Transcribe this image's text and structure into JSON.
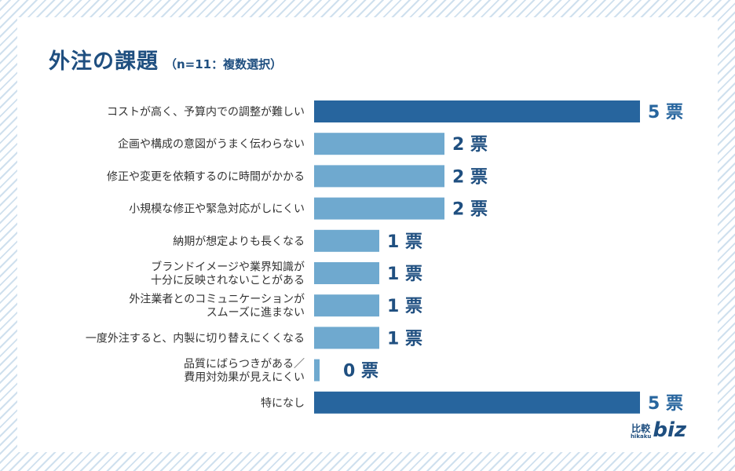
{
  "title": "外注の課題",
  "subtitle": "（n=11：複数選択）",
  "logo": {
    "kanji": "比較",
    "roman": "hikaku",
    "biz": "biz"
  },
  "colors": {
    "highlight": "#27659e",
    "normal": "#6fa9cf",
    "text": "#333333",
    "title": "#1f4f80"
  },
  "chart_data": {
    "type": "bar",
    "orientation": "horizontal",
    "title": "外注の課題",
    "subtitle": "（n=11：複数選択）",
    "unit": "票",
    "categories": [
      [
        "コストが高く、予算内での調整が難しい"
      ],
      [
        "企画や構成の意図がうまく伝わらない"
      ],
      [
        "修正や変更を依頼するのに時間がかかる"
      ],
      [
        "小規模な修正や緊急対応がしにくい"
      ],
      [
        "納期が想定よりも長くなる"
      ],
      [
        "ブランドイメージや業界知識が",
        "十分に反映されないことがある"
      ],
      [
        "外注業者とのコミュニケーションが",
        "スムーズに進まない"
      ],
      [
        "一度外注すると、内製に切り替えにくくなる"
      ],
      [
        "品質にばらつきがある／",
        "費用対効果が見えにくい"
      ],
      [
        "特になし"
      ]
    ],
    "values": [
      5,
      2,
      2,
      2,
      1,
      1,
      1,
      1,
      0,
      5
    ],
    "value_labels": [
      "5 票",
      "2 票",
      "2 票",
      "2 票",
      "1 票",
      "1 票",
      "1 票",
      "1 票",
      "0 票",
      "5 票"
    ],
    "highlight": [
      true,
      false,
      false,
      false,
      false,
      false,
      false,
      false,
      false,
      true
    ],
    "xlim": [
      0,
      5
    ],
    "grid": false,
    "legend": "none"
  }
}
